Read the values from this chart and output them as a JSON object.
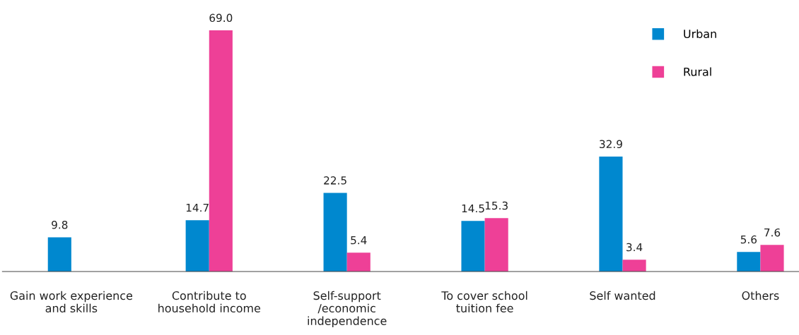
{
  "chart_data": {
    "type": "bar",
    "categories": [
      "Gain work experience\nand skills",
      "Contribute to\nhousehold income",
      "Self-support\n/economic\nindependence",
      "To cover school\ntuition fee",
      "Self wanted",
      "Others"
    ],
    "series": [
      {
        "name": "Urban",
        "color": "#0088cf",
        "values": [
          9.8,
          14.7,
          22.5,
          14.5,
          32.9,
          5.6
        ],
        "value_labels": [
          "9.8",
          "14.7",
          "22.5",
          "14.5",
          "32.9",
          "5.6"
        ]
      },
      {
        "name": "Rural",
        "color": "#ee4097",
        "values": [
          null,
          69.0,
          5.4,
          15.3,
          3.4,
          7.6
        ],
        "value_labels": [
          null,
          "69.0",
          "5.4",
          "15.3",
          "3.4",
          "7.6"
        ]
      }
    ],
    "legend": "top right",
    "grid": false
  }
}
